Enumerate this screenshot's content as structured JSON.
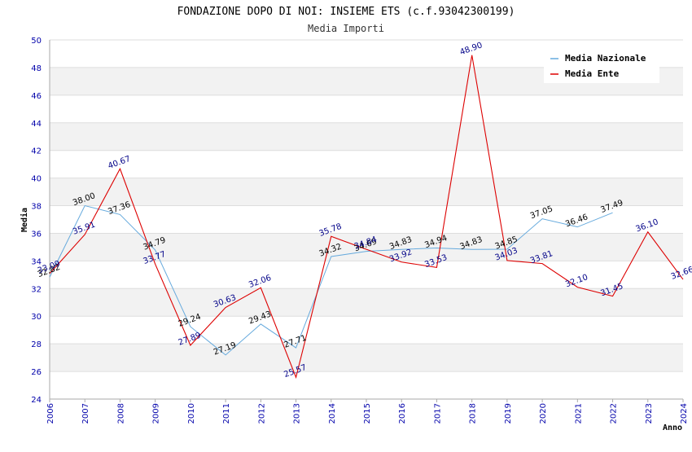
{
  "chart_data": {
    "type": "line",
    "title": "FONDAZIONE DOPO DI NOI: INSIEME ETS (c.f.93042300199)",
    "subtitle": "Media Importi",
    "xlabel": "Anno",
    "ylabel": "Media",
    "ylim": [
      24,
      50
    ],
    "yticks": [
      24,
      26,
      28,
      30,
      32,
      34,
      36,
      38,
      40,
      42,
      44,
      46,
      48,
      50
    ],
    "categories": [
      "2006",
      "2007",
      "2008",
      "2009",
      "2010",
      "2011",
      "2012",
      "2013",
      "2014",
      "2015",
      "2016",
      "2017",
      "2018",
      "2019",
      "2020",
      "2021",
      "2022",
      "2023",
      "2024"
    ],
    "legend_position": "top-right",
    "series": [
      {
        "name": "Media Nazionale",
        "color": "#66aadd",
        "label_color": "#000000",
        "values": [
          32.82,
          38.0,
          37.36,
          34.79,
          29.24,
          27.19,
          29.43,
          27.71,
          34.32,
          34.69,
          34.83,
          34.94,
          34.83,
          34.85,
          37.05,
          36.46,
          37.49,
          null,
          null
        ],
        "labels": [
          "32.82",
          "38.00",
          "37.36",
          "34.79",
          "29.24",
          "27.19",
          "29.43",
          "27.71",
          "34.32",
          "34.69",
          "34.83",
          "34.94",
          "34.83",
          "34.85",
          "37.05",
          "36.46",
          "37.49",
          "",
          ""
        ]
      },
      {
        "name": "Media Ente",
        "color": "#dd0000",
        "label_color": "#000088",
        "values": [
          33.09,
          35.91,
          40.67,
          33.77,
          27.89,
          30.63,
          32.06,
          25.57,
          35.78,
          34.84,
          33.92,
          33.53,
          48.9,
          34.03,
          33.81,
          32.1,
          31.45,
          36.1,
          32.66
        ],
        "labels": [
          "33.09",
          "35.91",
          "40.67",
          "33.77",
          "27.89",
          "30.63",
          "32.06",
          "25.57",
          "35.78",
          "34.84",
          "33.92",
          "33.53",
          "48.90",
          "34.03",
          "33.81",
          "32.10",
          "31.45",
          "36.10",
          "32.66"
        ]
      }
    ],
    "colors": {
      "band": "#f2f2f2",
      "grid": "#dddddd",
      "axis": "#aaaaaa",
      "tick_text": "#0000aa"
    }
  }
}
